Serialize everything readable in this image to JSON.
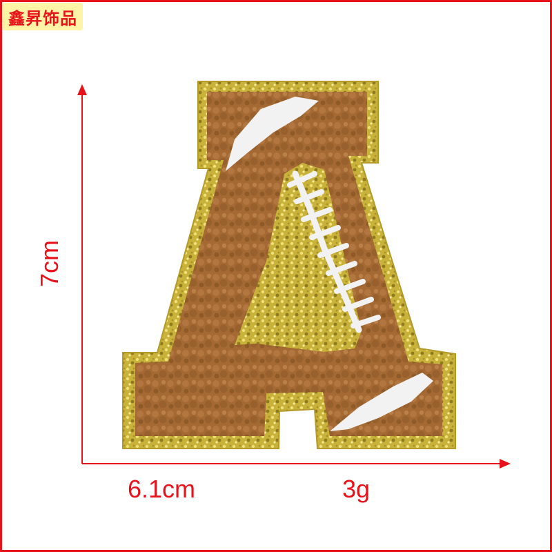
{
  "brand": {
    "label": "鑫昇饰品"
  },
  "measurements": {
    "height_label": "7cm",
    "width_label": "6.1cm",
    "weight_label": "3g"
  },
  "colors": {
    "frame": "#e8121b",
    "arrow": "#e8121b",
    "glitter_border": "#c8b23c",
    "chenille_brown": "#a56a34",
    "embroidery_white": "#f2f2f2",
    "brand_background": "#fff3a6"
  },
  "product": {
    "subject": "letter-A-chenille-football-patch"
  }
}
